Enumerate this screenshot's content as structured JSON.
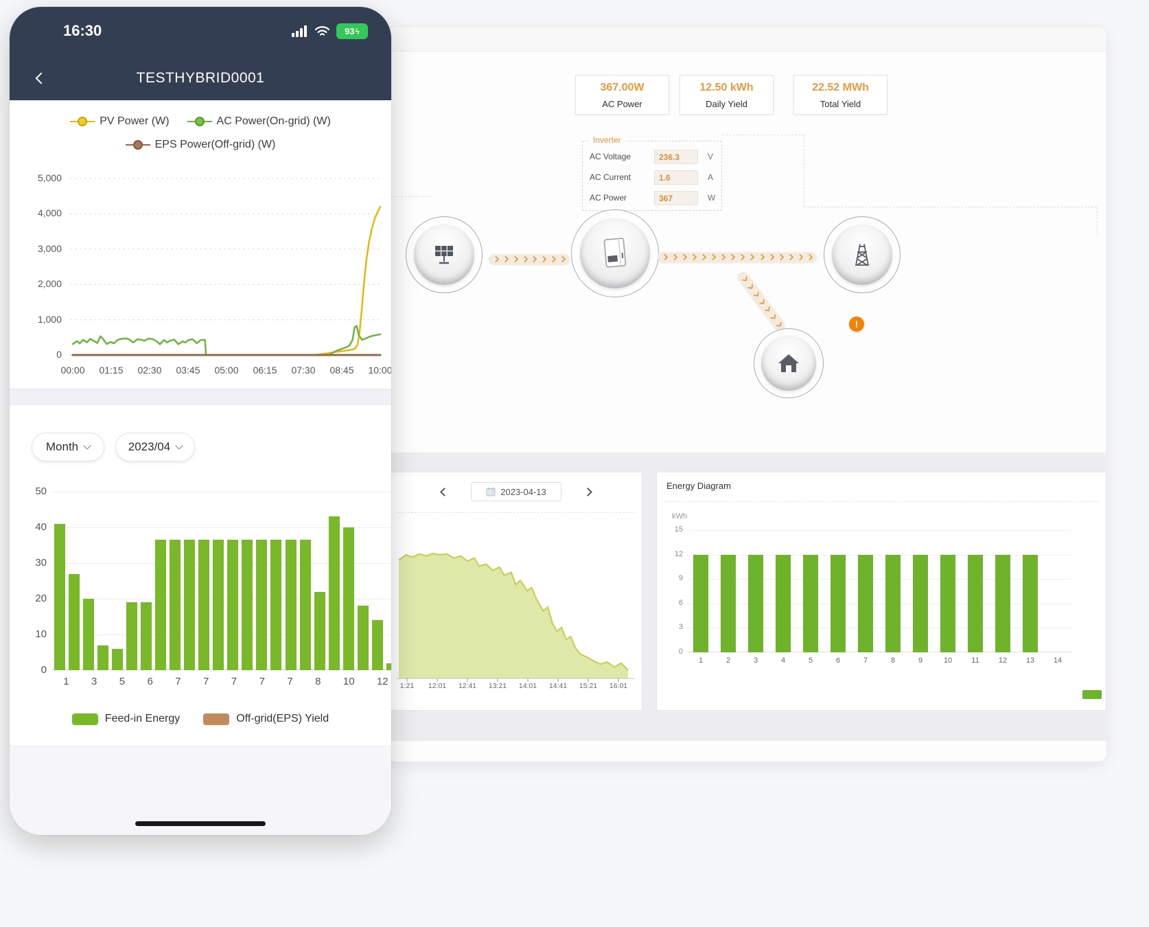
{
  "phone": {
    "status": {
      "time": "16:30",
      "battery": "93"
    },
    "nav": {
      "title": "TESTHYBRID0001"
    },
    "filters": {
      "period": "Month",
      "month": "2023/04"
    }
  },
  "desktop": {
    "stats": [
      {
        "value": "367.00W",
        "label": "AC Power"
      },
      {
        "value": "12.50 kWh",
        "label": "Daily Yield"
      },
      {
        "value": "22.52 MWh",
        "label": "Total Yield"
      }
    ],
    "inverter": {
      "title": "Inverter",
      "rows": [
        {
          "label": "AC Voltage",
          "value": "236.3",
          "unit": "V"
        },
        {
          "label": "AC Current",
          "value": "1.6",
          "unit": "A"
        },
        {
          "label": "AC Power",
          "value": "367",
          "unit": "W"
        }
      ]
    },
    "day_card": {
      "date": "2023-04-13"
    },
    "warning_mark": "!"
  },
  "colors": {
    "accent_orange": "#e89a40",
    "bar_green": "#79b829",
    "energy_green": "#6fb32c",
    "line_green": "#6db33f",
    "line_yellow": "#e3b90e",
    "line_brown": "#96684a",
    "legend_tan": "#c38a5c",
    "battery_green": "#34c759",
    "header_navy": "#333e52",
    "warning_orange": "#f08300",
    "area_fill": "#dce7a4",
    "area_stroke": "#c8cf52"
  },
  "chart_data": [
    {
      "id": "pv-power-line",
      "type": "line",
      "x_ticks": [
        "00:00",
        "01:15",
        "02:30",
        "03:45",
        "05:00",
        "06:15",
        "07:30",
        "08:45",
        "10:00"
      ],
      "y_ticks": [
        5000,
        4000,
        3000,
        2000,
        1000,
        0
      ],
      "ylim": [
        0,
        5000
      ],
      "xlim_minutes": [
        0,
        600
      ],
      "grid": "dashed",
      "legend_position": "top",
      "series": [
        {
          "name": "PV Power (W)",
          "color": "#e3b90e",
          "points": [
            [
              0,
              0
            ],
            [
              470,
              0
            ],
            [
              480,
              15
            ],
            [
              495,
              45
            ],
            [
              510,
              80
            ],
            [
              525,
              110
            ],
            [
              540,
              140
            ],
            [
              550,
              170
            ],
            [
              556,
              300
            ],
            [
              560,
              700
            ],
            [
              564,
              1300
            ],
            [
              568,
              2000
            ],
            [
              573,
              2700
            ],
            [
              578,
              3200
            ],
            [
              584,
              3600
            ],
            [
              590,
              3900
            ],
            [
              595,
              4050
            ],
            [
              600,
              4200
            ]
          ]
        },
        {
          "name": "AC Power(On-grid) (W)",
          "color": "#6db33f",
          "points": [
            [
              0,
              310
            ],
            [
              8,
              390
            ],
            [
              14,
              330
            ],
            [
              20,
              430
            ],
            [
              28,
              360
            ],
            [
              34,
              460
            ],
            [
              40,
              410
            ],
            [
              48,
              340
            ],
            [
              54,
              530
            ],
            [
              60,
              440
            ],
            [
              66,
              310
            ],
            [
              74,
              370
            ],
            [
              80,
              330
            ],
            [
              88,
              430
            ],
            [
              96,
              460
            ],
            [
              104,
              470
            ],
            [
              110,
              445
            ],
            [
              118,
              355
            ],
            [
              126,
              445
            ],
            [
              134,
              430
            ],
            [
              140,
              405
            ],
            [
              148,
              465
            ],
            [
              156,
              450
            ],
            [
              164,
              385
            ],
            [
              170,
              305
            ],
            [
              178,
              425
            ],
            [
              184,
              355
            ],
            [
              190,
              405
            ],
            [
              198,
              435
            ],
            [
              206,
              305
            ],
            [
              214,
              385
            ],
            [
              220,
              355
            ],
            [
              226,
              425
            ],
            [
              234,
              445
            ],
            [
              242,
              335
            ],
            [
              250,
              425
            ],
            [
              258,
              430
            ],
            [
              260,
              0
            ],
            [
              500,
              0
            ],
            [
              508,
              70
            ],
            [
              516,
              130
            ],
            [
              524,
              170
            ],
            [
              532,
              210
            ],
            [
              540,
              270
            ],
            [
              546,
              430
            ],
            [
              550,
              790
            ],
            [
              554,
              820
            ],
            [
              558,
              570
            ],
            [
              564,
              430
            ],
            [
              572,
              470
            ],
            [
              580,
              525
            ],
            [
              590,
              560
            ],
            [
              600,
              585
            ]
          ]
        },
        {
          "name": "EPS Power(Off-grid) (W)",
          "color": "#96684a",
          "points": [
            [
              0,
              0
            ],
            [
              600,
              0
            ]
          ]
        }
      ]
    },
    {
      "id": "monthly-bars",
      "type": "bar",
      "y_ticks": [
        50,
        40,
        30,
        20,
        10,
        0
      ],
      "ylim": [
        0,
        50
      ],
      "x_ticks": [
        "1",
        "3",
        "5",
        "6",
        "7",
        "7",
        "7",
        "7",
        "7",
        "8",
        "10",
        "12"
      ],
      "values": [
        41,
        27,
        20,
        7,
        6,
        19,
        19,
        36.5,
        36.5,
        36.5,
        36.5,
        36.5,
        36.5,
        36.5,
        36.5,
        36.5,
        36.5,
        36.5,
        22,
        43,
        40,
        18,
        14,
        2
      ],
      "color": "#79b829",
      "legend": [
        {
          "label": "Feed-in Energy",
          "color": "#79b829"
        },
        {
          "label": "Off-grid(EPS) Yield",
          "color": "#c38a5c"
        }
      ]
    },
    {
      "id": "day-area",
      "type": "area",
      "ylim": [
        0,
        14
      ],
      "x_ticks": [
        "1:21",
        "12:01",
        "12:41",
        "13:21",
        "14:01",
        "14:41",
        "15:21",
        "16:01"
      ],
      "fill": "#dce7a4",
      "stroke": "#c8cf52",
      "points": [
        [
          0,
          11.6
        ],
        [
          0.03,
          12.1
        ],
        [
          0.06,
          11.9
        ],
        [
          0.09,
          12.2
        ],
        [
          0.12,
          12.0
        ],
        [
          0.15,
          12.25
        ],
        [
          0.18,
          12.1
        ],
        [
          0.21,
          12.2
        ],
        [
          0.24,
          11.8
        ],
        [
          0.27,
          12.0
        ],
        [
          0.3,
          11.5
        ],
        [
          0.33,
          11.8
        ],
        [
          0.35,
          11.0
        ],
        [
          0.38,
          11.2
        ],
        [
          0.41,
          10.6
        ],
        [
          0.44,
          10.9
        ],
        [
          0.46,
          10.1
        ],
        [
          0.49,
          10.4
        ],
        [
          0.51,
          9.2
        ],
        [
          0.53,
          9.6
        ],
        [
          0.56,
          8.6
        ],
        [
          0.58,
          8.9
        ],
        [
          0.6,
          7.8
        ],
        [
          0.63,
          6.6
        ],
        [
          0.65,
          7.0
        ],
        [
          0.67,
          5.4
        ],
        [
          0.69,
          4.6
        ],
        [
          0.71,
          5.0
        ],
        [
          0.73,
          3.8
        ],
        [
          0.75,
          4.1
        ],
        [
          0.77,
          3.0
        ],
        [
          0.79,
          2.4
        ],
        [
          0.82,
          2.1
        ],
        [
          0.85,
          1.7
        ],
        [
          0.88,
          1.4
        ],
        [
          0.91,
          1.6
        ],
        [
          0.94,
          1.1
        ],
        [
          0.97,
          1.5
        ],
        [
          1,
          0.8
        ]
      ]
    },
    {
      "id": "energy-diagram",
      "type": "bar",
      "title": "Energy Diagram",
      "ylabel": "kWh",
      "y_ticks": [
        15,
        12,
        9,
        6,
        3,
        0
      ],
      "ylim": [
        0,
        15
      ],
      "categories": [
        "1",
        "2",
        "3",
        "4",
        "5",
        "6",
        "7",
        "8",
        "9",
        "10",
        "11",
        "12",
        "13",
        "14"
      ],
      "values": [
        12,
        12,
        12,
        12,
        12,
        12,
        12,
        12,
        12,
        12,
        12,
        12,
        12,
        null
      ],
      "color": "#6fb32c"
    }
  ]
}
